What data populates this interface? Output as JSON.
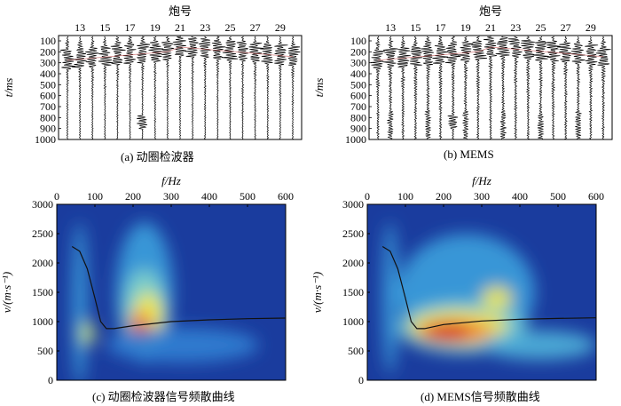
{
  "top_panels": [
    {
      "id": "a",
      "title": "炮号",
      "xticks": [
        "13",
        "15",
        "17",
        "19",
        "21",
        "23",
        "25",
        "27",
        "29"
      ],
      "yticks": [
        "100",
        "200",
        "300",
        "400",
        "500",
        "600",
        "700",
        "800",
        "900",
        "1000"
      ],
      "ylabel": "t/ms",
      "caption": "(a) 动圈检波器"
    },
    {
      "id": "b",
      "title": "炮号",
      "xticks": [
        "13",
        "15",
        "17",
        "19",
        "21",
        "23",
        "25",
        "27",
        "29"
      ],
      "yticks": [
        "100",
        "200",
        "300",
        "400",
        "500",
        "600",
        "700",
        "800",
        "900",
        "1000"
      ],
      "ylabel": "t/ms",
      "caption": "(b) MEMS"
    }
  ],
  "bottom_panels": [
    {
      "id": "c",
      "xlabel": "f/Hz",
      "ylabel": "v/(m·s⁻¹)",
      "caption": "(c) 动圈检波器信号频散曲线"
    },
    {
      "id": "d",
      "xlabel": "f/Hz",
      "ylabel": "v/(m·s⁻¹)",
      "caption": "(d) MEMS信号频散曲线"
    }
  ],
  "chart_data": [
    {
      "type": "line",
      "panel": "c",
      "x_ticks": [
        0,
        100,
        200,
        300,
        400,
        500,
        600
      ],
      "y_ticks": [
        0,
        500,
        1000,
        1500,
        2000,
        2500,
        3000
      ],
      "xlim": [
        0,
        600
      ],
      "ylim": [
        0,
        3000
      ],
      "series": [
        {
          "x": [
            40,
            60,
            80,
            100,
            115,
            130,
            150,
            200,
            300,
            400,
            500,
            600
          ],
          "y": [
            2280,
            2200,
            1900,
            1400,
            1000,
            880,
            880,
            930,
            1000,
            1030,
            1050,
            1060
          ]
        }
      ]
    },
    {
      "type": "line",
      "panel": "d",
      "x_ticks": [
        0,
        100,
        200,
        300,
        400,
        500,
        600
      ],
      "y_ticks": [
        0,
        500,
        1000,
        1500,
        2000,
        2500,
        3000
      ],
      "xlim": [
        0,
        600
      ],
      "ylim": [
        0,
        3000
      ],
      "series": [
        {
          "x": [
            40,
            60,
            80,
            100,
            115,
            130,
            150,
            200,
            300,
            400,
            500,
            600
          ],
          "y": [
            2280,
            2200,
            1900,
            1400,
            1000,
            880,
            880,
            950,
            1010,
            1040,
            1055,
            1065
          ]
        }
      ]
    }
  ]
}
